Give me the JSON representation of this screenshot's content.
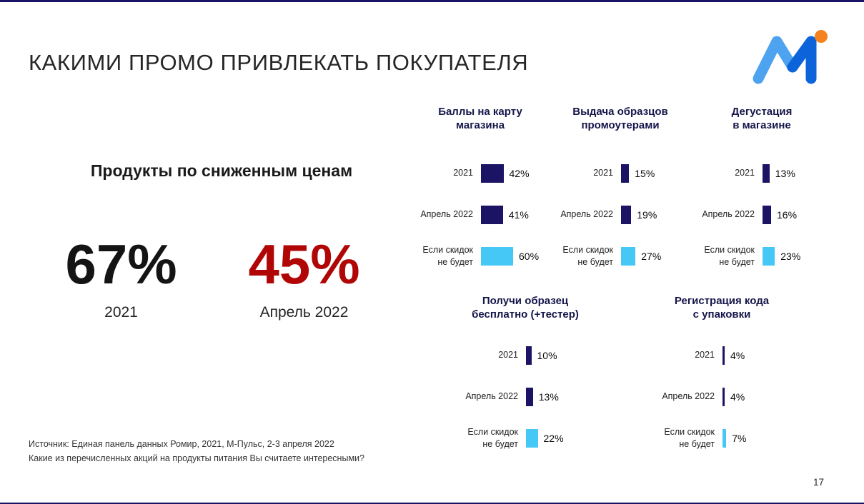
{
  "slide": {
    "title": "КАКИМИ ПРОМО ПРИВЛЕКАТЬ ПОКУПАТЕЛЯ",
    "page_number": "17",
    "source": {
      "line1": "Источник: Единая панель данных Ромир, 2021, М-Пульс, 2-3 апреля 2022",
      "line2": "Какие из перечисленных акций на продукты питания Вы считаете интересными?"
    }
  },
  "left_panel": {
    "heading": "Продукты по сниженным ценам",
    "stats": [
      {
        "value": "67%",
        "label": "2021",
        "color": "#141414"
      },
      {
        "value": "45%",
        "label": "Апрель 2022",
        "color": "#b00606"
      }
    ]
  },
  "chart_data": [
    {
      "type": "bar",
      "orientation": "horizontal",
      "title": "Баллы на карту\nмагазина",
      "categories": [
        "2021",
        "Апрель 2022",
        "Если скидок\nне будет"
      ],
      "values": [
        42,
        41,
        60
      ],
      "value_labels": [
        "42%",
        "41%",
        "60%"
      ],
      "bar_colors": [
        "#1b1464",
        "#1b1464",
        "#45c8f5"
      ],
      "xlim": [
        0,
        100
      ]
    },
    {
      "type": "bar",
      "orientation": "horizontal",
      "title": "Выдача образцов\nпромоутерами",
      "categories": [
        "2021",
        "Апрель 2022",
        "Если скидок\nне будет"
      ],
      "values": [
        15,
        19,
        27
      ],
      "value_labels": [
        "15%",
        "19%",
        "27%"
      ],
      "bar_colors": [
        "#1b1464",
        "#1b1464",
        "#45c8f5"
      ],
      "xlim": [
        0,
        100
      ]
    },
    {
      "type": "bar",
      "orientation": "horizontal",
      "title": "Дегустация\nв магазине",
      "categories": [
        "2021",
        "Апрель 2022",
        "Если скидок\nне будет"
      ],
      "values": [
        13,
        16,
        23
      ],
      "value_labels": [
        "13%",
        "16%",
        "23%"
      ],
      "bar_colors": [
        "#1b1464",
        "#1b1464",
        "#45c8f5"
      ],
      "xlim": [
        0,
        100
      ]
    },
    {
      "type": "bar",
      "orientation": "horizontal",
      "title": "Получи образец\nбесплатно (+тестер)",
      "categories": [
        "2021",
        "Апрель 2022",
        "Если скидок\nне будет"
      ],
      "values": [
        10,
        13,
        22
      ],
      "value_labels": [
        "10%",
        "13%",
        "22%"
      ],
      "bar_colors": [
        "#1b1464",
        "#1b1464",
        "#45c8f5"
      ],
      "xlim": [
        0,
        100
      ]
    },
    {
      "type": "bar",
      "orientation": "horizontal",
      "title": "Регистрация кода\nс упаковки",
      "categories": [
        "2021",
        "Апрель 2022",
        "Если скидок\nне будет"
      ],
      "values": [
        4,
        4,
        7
      ],
      "value_labels": [
        "4%",
        "4%",
        "7%"
      ],
      "bar_colors": [
        "#1b1464",
        "#1b1464",
        "#45c8f5"
      ],
      "xlim": [
        0,
        100
      ]
    }
  ],
  "colors": {
    "navy": "#1b1464",
    "light_blue": "#45c8f5",
    "red": "#b00606",
    "logo_blue_light": "#4da3ef",
    "logo_blue_dark": "#0d63d9",
    "logo_orange": "#f5821f"
  }
}
